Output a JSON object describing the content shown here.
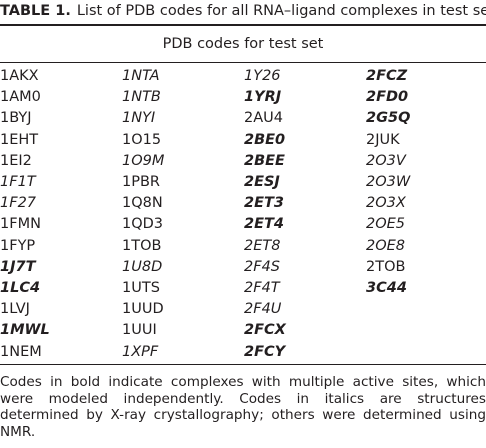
{
  "title": {
    "label": "TABLE 1.",
    "text": "List of PDB codes for all RNA–ligand complexes in test set"
  },
  "table": {
    "header": "PDB codes for test set",
    "rows": [
      [
        "1AKX",
        {
          "text": "1NTA",
          "style": "italic"
        },
        {
          "text": "1Y26",
          "style": "italic"
        },
        {
          "text": "2FCZ",
          "style": "bold-italic"
        }
      ],
      [
        "1AM0",
        {
          "text": "1NTB",
          "style": "italic"
        },
        {
          "text": "1YRJ",
          "style": "bold-italic"
        },
        {
          "text": "2FD0",
          "style": "bold-italic"
        }
      ],
      [
        "1BYJ",
        {
          "text": "1NYI",
          "style": "italic"
        },
        "2AU4",
        {
          "text": "2G5Q",
          "style": "bold-italic"
        }
      ],
      [
        "1EHT",
        "1O15",
        {
          "text": "2BE0",
          "style": "bold-italic"
        },
        "2JUK"
      ],
      [
        "1EI2",
        {
          "text": "1O9M",
          "style": "italic"
        },
        {
          "text": "2BEE",
          "style": "bold-italic"
        },
        {
          "text": "2O3V",
          "style": "italic"
        }
      ],
      [
        {
          "text": "1F1T",
          "style": "italic"
        },
        "1PBR",
        {
          "text": "2ESJ",
          "style": "bold-italic"
        },
        {
          "text": "2O3W",
          "style": "italic"
        }
      ],
      [
        {
          "text": "1F27",
          "style": "italic"
        },
        "1Q8N",
        {
          "text": "2ET3",
          "style": "bold-italic"
        },
        {
          "text": "2O3X",
          "style": "italic"
        }
      ],
      [
        "1FMN",
        "1QD3",
        {
          "text": "2ET4",
          "style": "bold-italic"
        },
        {
          "text": "2OE5",
          "style": "italic"
        }
      ],
      [
        "1FYP",
        "1TOB",
        {
          "text": "2ET8",
          "style": "italic"
        },
        {
          "text": "2OE8",
          "style": "italic"
        }
      ],
      [
        {
          "text": "1J7T",
          "style": "bold-italic"
        },
        {
          "text": "1U8D",
          "style": "italic"
        },
        {
          "text": "2F4S",
          "style": "italic"
        },
        "2TOB"
      ],
      [
        {
          "text": "1LC4",
          "style": "bold-italic"
        },
        "1UTS",
        {
          "text": "2F4T",
          "style": "italic"
        },
        {
          "text": "3C44",
          "style": "bold-italic"
        }
      ],
      [
        "1LVJ",
        "1UUD",
        {
          "text": "2F4U",
          "style": "italic"
        }
      ],
      [
        {
          "text": "1MWL",
          "style": "bold-italic"
        },
        "1UUI",
        {
          "text": "2FCX",
          "style": "bold-italic"
        }
      ],
      [
        "1NEM",
        {
          "text": "1XPF",
          "style": "italic"
        },
        {
          "text": "2FCY",
          "style": "bold-italic"
        }
      ]
    ]
  },
  "footnote": "Codes in bold indicate complexes with multiple active sites, which were modeled independently. Codes in italics are structures determined by X-ray crystallography; others were determined using NMR."
}
